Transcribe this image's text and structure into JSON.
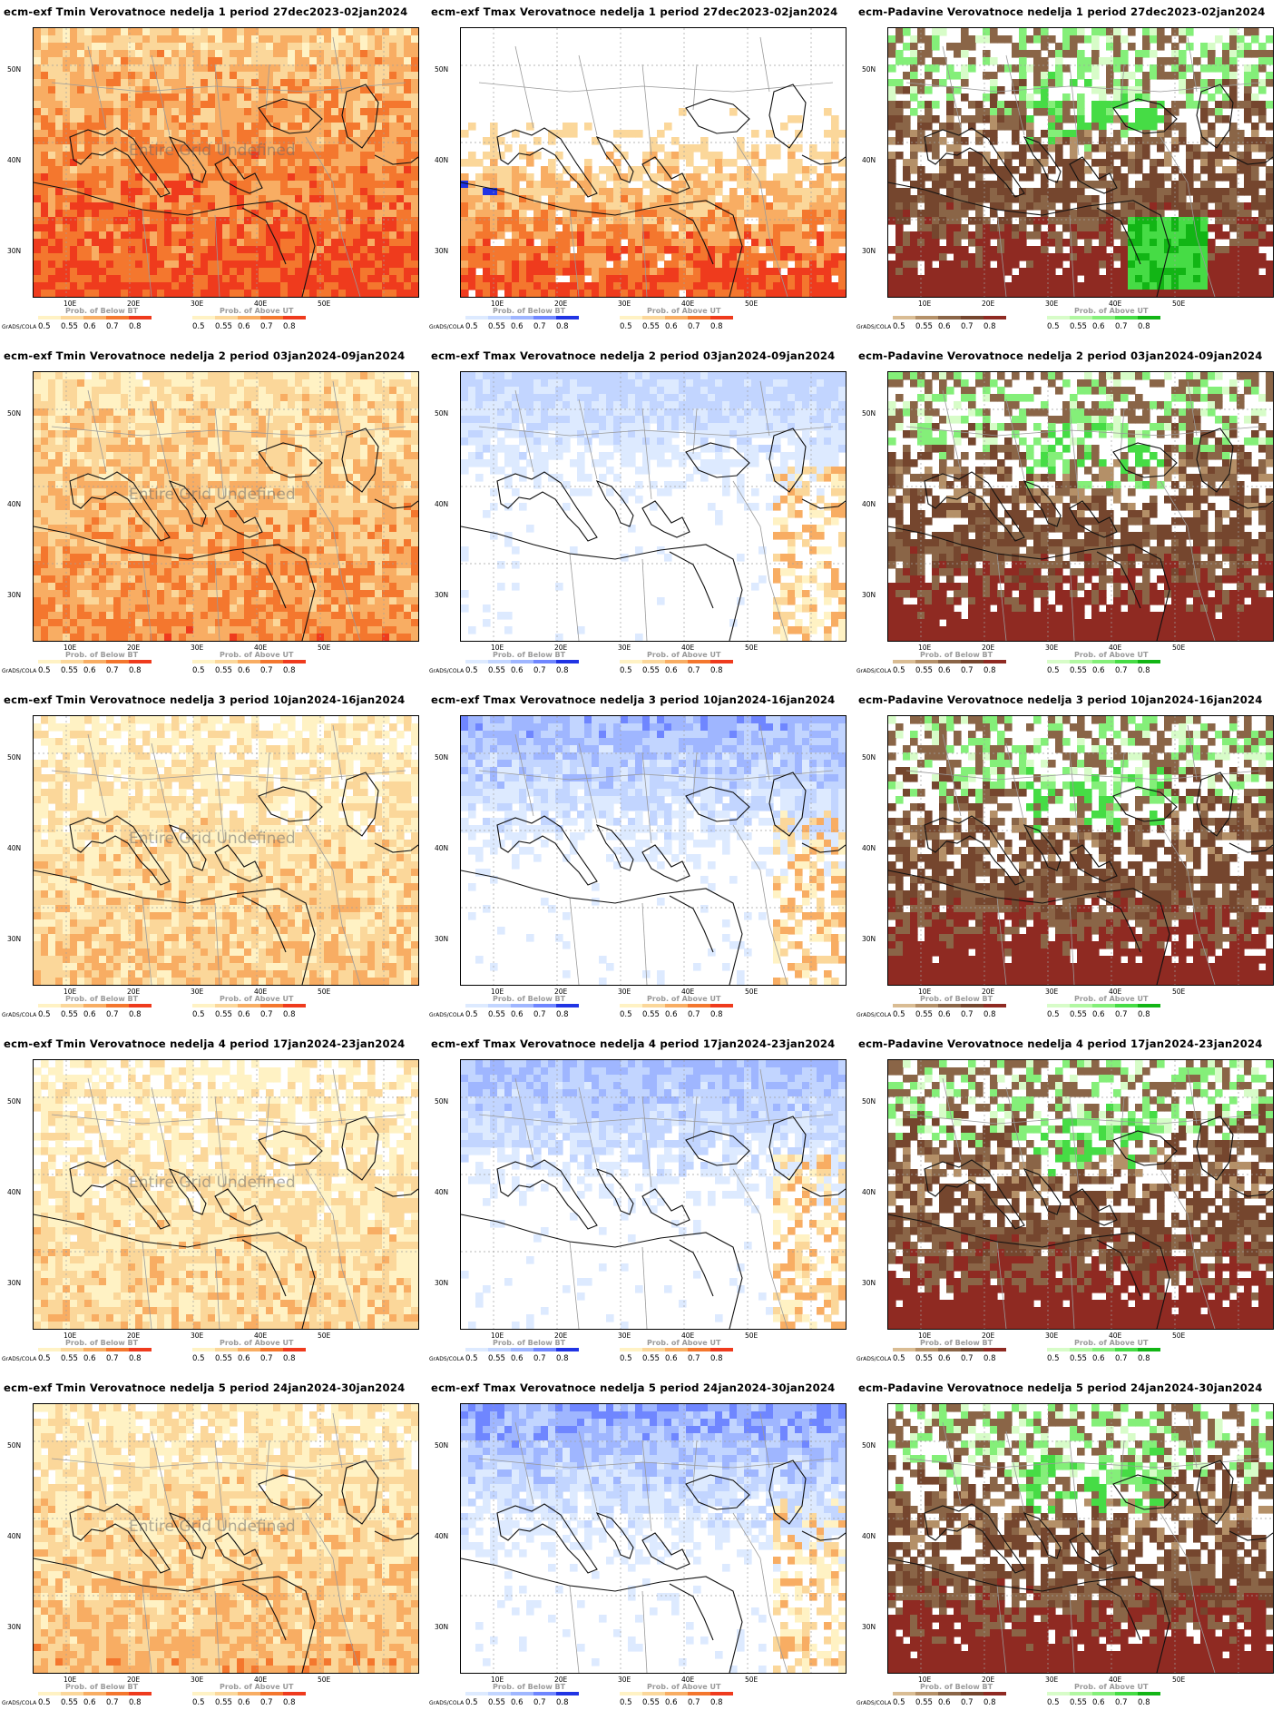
{
  "source_label": "GrADS/COLA",
  "undefined_label": "Entire Grid Undefined",
  "ylabels": [
    "50N",
    "40N",
    "30N"
  ],
  "xlabels": [
    "10E",
    "20E",
    "30E",
    "40E",
    "50E"
  ],
  "legend_ticks": [
    "0.5",
    "0.55",
    "0.6",
    "0.7",
    "0.8"
  ],
  "palettes": {
    "warm": [
      "#fff2c4",
      "#fbd79a",
      "#f8ad63",
      "#f4772e",
      "#ef3b1d"
    ],
    "cold": [
      "#ddeaff",
      "#c2d5ff",
      "#9fb6ff",
      "#6f86ff",
      "#2034e4"
    ],
    "dry": [
      "#d9bc93",
      "#b49068",
      "#8a6547",
      "#75462e",
      "#8f2a22"
    ],
    "wet": [
      "#d7fcc8",
      "#b2f7a2",
      "#84ef79",
      "#46dc45",
      "#12b515"
    ]
  },
  "panels": [
    {
      "title": "ecm-exf Tmin Verovatnoce nedelja 1 period 27dec2023-02jan2024",
      "variable": "tmin",
      "legend_left": "Prob. of Below BT",
      "legend_right": "Prob. of Above UT",
      "left_palette": "warm",
      "right_palette": "warm",
      "undefined": true,
      "intensity": 0.95
    },
    {
      "title": "ecm-exf Tmax Verovatnoce nedelja 1 period 27dec2023-02jan2024",
      "variable": "tmax",
      "legend_left": "Prob. of Below BT",
      "legend_right": "Prob. of Above UT",
      "left_palette": "cold",
      "right_palette": "warm",
      "undefined": false,
      "intensity": 0.75
    },
    {
      "title": "ecm-Padavine Verovatnoce nedelja 1 period 27dec2023-02jan2024",
      "variable": "precip",
      "legend_left": "",
      "legend_right": "Prob. of Above UT",
      "left_palette": "dry",
      "right_palette": "wet",
      "undefined": false,
      "intensity": 0.75
    },
    {
      "title": "ecm-exf Tmin Verovatnoce nedelja 2 period 03jan2024-09jan2024",
      "variable": "tmin",
      "legend_left": "Prob. of Below BT",
      "legend_right": "Prob. of Above UT",
      "left_palette": "warm",
      "right_palette": "warm",
      "undefined": true,
      "intensity": 0.75
    },
    {
      "title": "ecm-exf Tmax Verovatnoce nedelja 2 period 03jan2024-09jan2024",
      "variable": "tmax",
      "legend_left": "Prob. of Below BT",
      "legend_right": "Prob. of Above UT",
      "left_palette": "cold",
      "right_palette": "warm",
      "undefined": false,
      "intensity": 0.4
    },
    {
      "title": "ecm-Padavine Verovatnoce nedelja 2 period 03jan2024-09jan2024",
      "variable": "precip",
      "legend_left": "Prob. of Below BT",
      "legend_right": "Prob. of Above UT",
      "left_palette": "dry",
      "right_palette": "wet",
      "undefined": false,
      "intensity": 0.6
    },
    {
      "title": "ecm-exf Tmin Verovatnoce nedelja 3 period 10jan2024-16jan2024",
      "variable": "tmin",
      "legend_left": "Prob. of Below BT",
      "legend_right": "Prob. of Above UT",
      "left_palette": "warm",
      "right_palette": "warm",
      "undefined": true,
      "intensity": 0.55
    },
    {
      "title": "ecm-exf Tmax Verovatnoce nedelja 3 period 10jan2024-16jan2024",
      "variable": "tmax",
      "legend_left": "Prob. of Below BT",
      "legend_right": "Prob. of Above UT",
      "left_palette": "cold",
      "right_palette": "warm",
      "undefined": false,
      "intensity": 0.7
    },
    {
      "title": "ecm-Padavine Verovatnoce nedelja 3 period 10jan2024-16jan2024",
      "variable": "precip",
      "legend_left": "Prob. of Below BT",
      "legend_right": "Prob. of Above UT",
      "left_palette": "dry",
      "right_palette": "wet",
      "undefined": false,
      "intensity": 0.7
    },
    {
      "title": "ecm-exf Tmin Verovatnoce nedelja 4 period 17jan2024-23jan2024",
      "variable": "tmin",
      "legend_left": "Prob. of Below BT",
      "legend_right": "Prob. of Above UT",
      "left_palette": "warm",
      "right_palette": "warm",
      "undefined": true,
      "intensity": 0.5
    },
    {
      "title": "ecm-exf Tmax Verovatnoce nedelja 4 period 17jan2024-23jan2024",
      "variable": "tmax",
      "legend_left": "Prob. of Below BT",
      "legend_right": "Prob. of Above UT",
      "left_palette": "cold",
      "right_palette": "warm",
      "undefined": false,
      "intensity": 0.6
    },
    {
      "title": "ecm-Padavine Verovatnoce nedelja 4 period 17jan2024-23jan2024",
      "variable": "precip",
      "legend_left": "Prob. of Below BT",
      "legend_right": "Prob. of Above UT",
      "left_palette": "dry",
      "right_palette": "wet",
      "undefined": false,
      "intensity": 0.75
    },
    {
      "title": "ecm-exf Tmin Verovatnoce nedelja 5 period 24jan2024-30jan2024",
      "variable": "tmin",
      "legend_left": "Prob. of Below BT",
      "legend_right": "Prob. of Above UT",
      "left_palette": "warm",
      "right_palette": "warm",
      "undefined": true,
      "intensity": 0.6
    },
    {
      "title": "ecm-exf Tmax Verovatnoce nedelja 5 period 24jan2024-30jan2024",
      "variable": "tmax",
      "legend_left": "Prob. of Below BT",
      "legend_right": "Prob. of Above UT",
      "left_palette": "cold",
      "right_palette": "warm",
      "undefined": false,
      "intensity": 0.8
    },
    {
      "title": "ecm-Padavine Verovatnoce nedelja 5 period 24jan2024-30jan2024",
      "variable": "precip",
      "legend_left": "Prob. of Below BT",
      "legend_right": "Prob. of Above UT",
      "left_palette": "dry",
      "right_palette": "wet",
      "undefined": false,
      "intensity": 0.8
    }
  ]
}
